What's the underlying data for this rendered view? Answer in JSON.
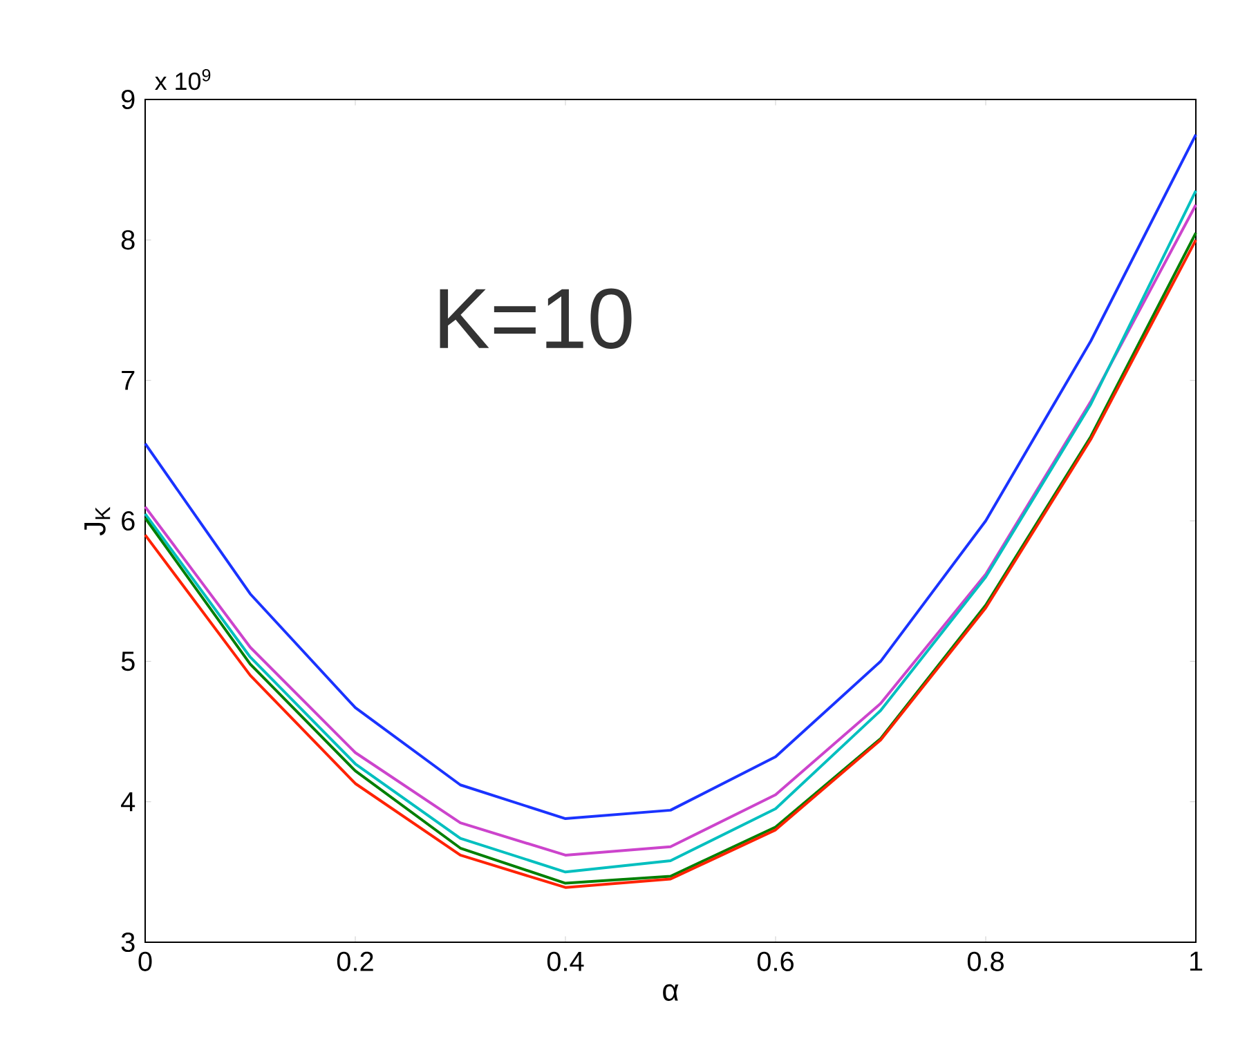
{
  "chart_data": {
    "type": "line",
    "xlabel": "α",
    "ylabel": "J$_{K}$",
    "annotations": [
      "x 10$^{9}$",
      "K=10"
    ],
    "x": [
      0,
      0.1,
      0.2,
      0.3,
      0.4,
      0.5,
      0.6,
      0.7,
      0.8,
      0.9,
      1
    ],
    "xlim": [
      0,
      1
    ],
    "xticks": [
      0,
      0.2,
      0.4,
      0.6,
      0.8,
      1
    ],
    "ylim": [
      3,
      9
    ],
    "yticks": [
      3,
      4,
      5,
      6,
      7,
      8,
      9
    ],
    "series": [
      {
        "color": "#1a33ff",
        "values": [
          6.55,
          5.48,
          4.67,
          4.12,
          3.88,
          3.94,
          4.32,
          5.0,
          6.0,
          7.28,
          8.75
        ]
      },
      {
        "color": "#cc44cc",
        "values": [
          6.1,
          5.1,
          4.35,
          3.85,
          3.62,
          3.68,
          4.05,
          4.7,
          5.62,
          6.85,
          8.25
        ]
      },
      {
        "color": "#00bfbf",
        "values": [
          6.05,
          5.03,
          4.27,
          3.74,
          3.5,
          3.58,
          3.95,
          4.65,
          5.6,
          6.83,
          8.35
        ]
      },
      {
        "color": "#007f00",
        "values": [
          6.02,
          4.98,
          4.22,
          3.67,
          3.42,
          3.47,
          3.82,
          4.45,
          5.4,
          6.6,
          8.05
        ]
      },
      {
        "color": "#ff2200",
        "values": [
          5.9,
          4.9,
          4.13,
          3.62,
          3.39,
          3.45,
          3.8,
          4.44,
          5.38,
          6.58,
          8.0
        ]
      }
    ]
  }
}
